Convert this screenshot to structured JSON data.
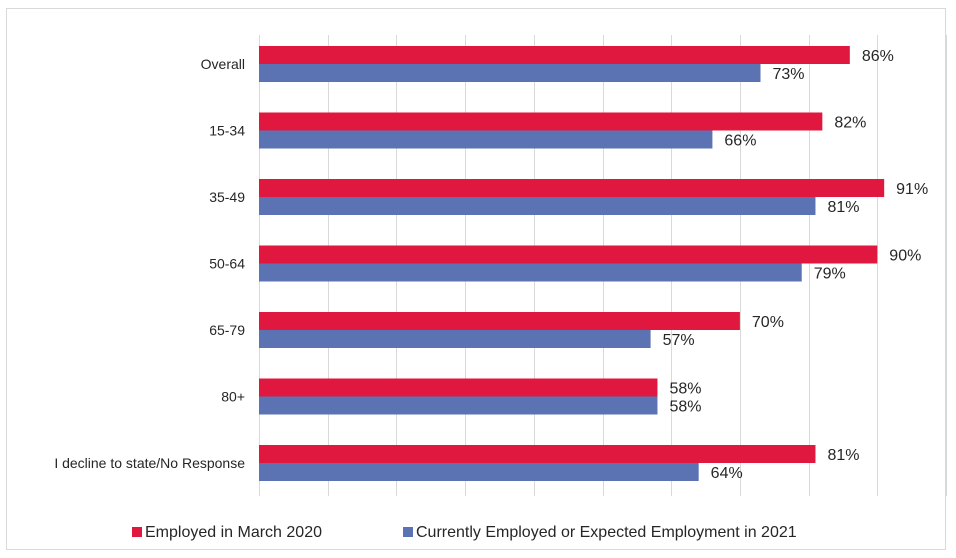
{
  "chart_data": {
    "type": "bar",
    "orientation": "horizontal",
    "categories": [
      "Overall",
      "15-34",
      "35-49",
      "50-64",
      "65-79",
      "80+",
      "I decline to state/No Response"
    ],
    "series": [
      {
        "name": "Employed in March 2020",
        "values": [
          86,
          82,
          91,
          90,
          70,
          58,
          81
        ],
        "labels": [
          "86%",
          "82%",
          "91%",
          "90%",
          "70%",
          "58%",
          "81%"
        ],
        "color": "#e0173f"
      },
      {
        "name": "Currently Employed or Expected Employment in 2021",
        "values": [
          73,
          66,
          81,
          79,
          57,
          58,
          64
        ],
        "labels": [
          "73%",
          "66%",
          "81%",
          "79%",
          "57%",
          "58%",
          "64%"
        ],
        "color": "#5b73b3"
      }
    ],
    "xlim": [
      0,
      100
    ],
    "grid": true,
    "legend": "bottom"
  }
}
